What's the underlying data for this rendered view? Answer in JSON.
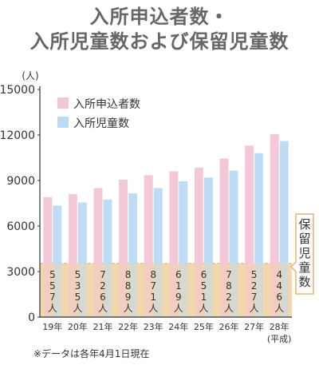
{
  "title": {
    "line1": "入所申込者数・",
    "line2": "入所児童数および保留児童数"
  },
  "note": "※データは各年4月1日現在",
  "chart_data": {
    "type": "bar",
    "yunit": "(人)",
    "ylim": [
      0,
      15000
    ],
    "yticks": [
      "0",
      "3000",
      "6000",
      "9000",
      "12000",
      "15000"
    ],
    "categories": [
      "19年",
      "20年",
      "21年",
      "22年",
      "23年",
      "24年",
      "25年",
      "26年",
      "27年",
      "28年"
    ],
    "era_label": "(平成)",
    "series": [
      {
        "name": "入所申込者数",
        "color": "#f2c6d8",
        "values": [
          7900,
          8100,
          8500,
          9050,
          9350,
          9600,
          9850,
          10450,
          11300,
          12050
        ]
      },
      {
        "name": "入所児童数",
        "color": "#bcdaf3",
        "values": [
          7350,
          7550,
          7750,
          8150,
          8500,
          8950,
          9200,
          9650,
          10800,
          11600
        ]
      }
    ],
    "waiting": {
      "label": "保留児童数",
      "color": "#f3d4a6",
      "values_text": [
        "557人",
        "535人",
        "726人",
        "889人",
        "871人",
        "619人",
        "651人",
        "782人",
        "527人",
        "446人"
      ]
    },
    "legend_position": "top-left"
  }
}
